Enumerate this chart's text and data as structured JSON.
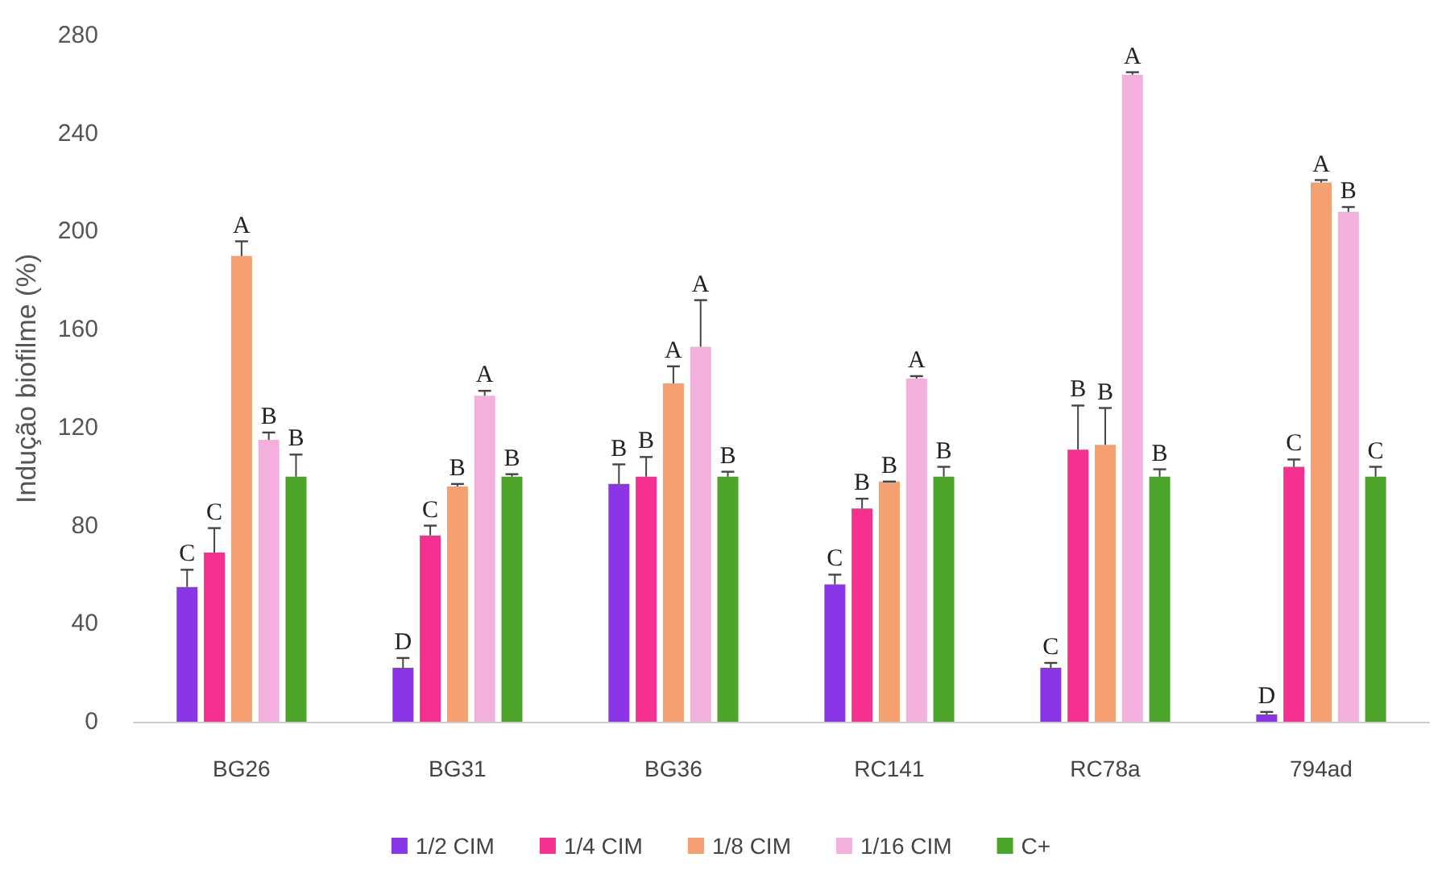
{
  "chart_data": {
    "type": "bar",
    "ylabel": "Indução biofilme (%)",
    "categories": [
      "BG26",
      "BG31",
      "BG36",
      "RC141",
      "RC78a",
      "794ad"
    ],
    "series": [
      {
        "name": "1/2 CIM",
        "color": "#8b35e8",
        "values": [
          55,
          22,
          97,
          56,
          22,
          3
        ],
        "errors": [
          [
            55,
            62
          ],
          [
            22,
            26
          ],
          [
            97,
            105
          ],
          [
            56,
            60
          ],
          [
            22,
            24
          ],
          [
            3,
            4
          ]
        ],
        "value_labels": [
          "C",
          "D",
          "B",
          "C",
          "C",
          "D"
        ]
      },
      {
        "name": "1/4 CIM",
        "color": "#f7308f",
        "values": [
          69,
          76,
          100,
          87,
          111,
          104
        ],
        "errors": [
          [
            69,
            79
          ],
          [
            76,
            80
          ],
          [
            100,
            108
          ],
          [
            87,
            91
          ],
          [
            111,
            129
          ],
          [
            104,
            107
          ]
        ],
        "value_labels": [
          "C",
          "C",
          "B",
          "B",
          "B",
          "C"
        ]
      },
      {
        "name": "1/8 CIM",
        "color": "#f5a070",
        "values": [
          190,
          96,
          138,
          98,
          113,
          220
        ],
        "errors": [
          [
            190,
            196
          ],
          [
            96,
            97
          ],
          [
            138,
            145
          ],
          [
            98,
            98
          ],
          [
            113,
            128
          ],
          [
            220,
            221
          ]
        ],
        "value_labels": [
          "A",
          "B",
          "A",
          "B",
          "B",
          "A"
        ]
      },
      {
        "name": "1/16 CIM",
        "color": "#f4b0dc",
        "values": [
          115,
          133,
          153,
          140,
          264,
          208
        ],
        "errors": [
          [
            115,
            118
          ],
          [
            133,
            135
          ],
          [
            153,
            172
          ],
          [
            140,
            141
          ],
          [
            264,
            265
          ],
          [
            208,
            210
          ]
        ],
        "value_labels": [
          "B",
          "A",
          "A",
          "A",
          "A",
          "B"
        ]
      },
      {
        "name": "C+",
        "color": "#4aa52a",
        "values": [
          100,
          100,
          100,
          100,
          100,
          100
        ],
        "errors": [
          [
            100,
            109
          ],
          [
            100,
            101
          ],
          [
            100,
            102
          ],
          [
            100,
            104
          ],
          [
            100,
            103
          ],
          [
            100,
            104
          ]
        ],
        "value_labels": [
          "B",
          "B",
          "B",
          "B",
          "B",
          "C"
        ]
      }
    ],
    "ylim": [
      0,
      280
    ],
    "yticks": [
      0,
      40,
      80,
      120,
      160,
      200,
      240,
      280
    ],
    "grid": false,
    "legend": "bottom"
  }
}
